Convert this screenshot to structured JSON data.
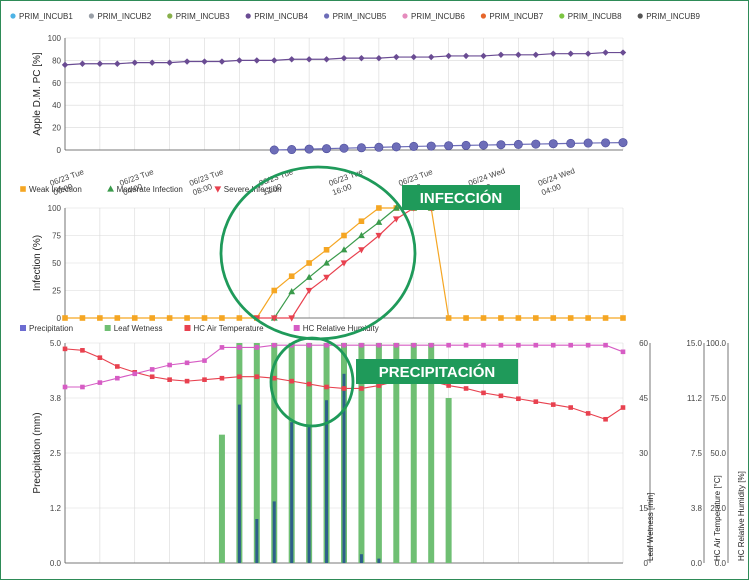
{
  "chart_data": [
    {
      "type": "line",
      "legend": [
        "PRIM_INCUB1",
        "PRIM_INCUB2",
        "PRIM_INCUB3",
        "PRIM_INCUB4",
        "PRIM_INCUB5",
        "PRIM_INCUB6",
        "PRIM_INCUB7",
        "PRIM_INCUB8",
        "PRIM_INCUB9"
      ],
      "legend_colors": [
        "#4db3e6",
        "#9aa0a8",
        "#88b04b",
        "#6a4c93",
        "#6d6db8",
        "#e58bbd",
        "#e6662b",
        "#7cc542",
        "#555555"
      ],
      "legend_placement": "top",
      "ylabel": "Apple D.M. PC [%]",
      "ylim": [
        0,
        100
      ],
      "yticks": [
        "0",
        "20",
        "40",
        "60",
        "80",
        "100"
      ],
      "xticks": [
        "06/23 Tue\n00:00",
        "06/23 Tue\n04:00",
        "06/23 Tue\n08:00",
        "06/23 Tue\n12:00",
        "06/23 Tue\n16:00",
        "06/23 Tue\n20:00",
        "06/24 Wed\n00:00",
        "06/24 Wed\n04:00"
      ],
      "x_range_hours": [
        0,
        32
      ],
      "grid": true,
      "series": [
        {
          "name": "PRIM_INCUB4",
          "color": "#6a4c93",
          "marker": "diamond",
          "x": [
            0,
            1,
            2,
            3,
            4,
            5,
            6,
            7,
            8,
            9,
            10,
            11,
            12,
            13,
            14,
            15,
            16,
            17,
            18,
            19,
            20,
            21,
            22,
            23,
            24,
            25,
            26,
            27,
            28,
            29,
            30,
            31,
            32
          ],
          "values": [
            76,
            77,
            77,
            77,
            78,
            78,
            78,
            79,
            79,
            79,
            80,
            80,
            80,
            81,
            81,
            81,
            82,
            82,
            82,
            83,
            83,
            83,
            84,
            84,
            84,
            85,
            85,
            85,
            86,
            86,
            86,
            87,
            87
          ]
        },
        {
          "name": "PRIM_INCUB5",
          "color": "#6d6db8",
          "marker": "circle",
          "x": [
            12,
            13,
            14,
            15,
            16,
            17,
            18,
            19,
            20,
            21,
            22,
            23,
            24,
            25,
            26,
            27,
            28,
            29,
            30,
            31,
            32
          ],
          "values": [
            0,
            0.4,
            0.8,
            1.2,
            1.6,
            2,
            2.4,
            2.8,
            3.2,
            3.5,
            3.8,
            4.1,
            4.4,
            4.7,
            5,
            5.3,
            5.6,
            5.9,
            6.2,
            6.4,
            6.6
          ]
        }
      ]
    },
    {
      "type": "line",
      "legend": [
        "Weak Infection",
        "Moderate Infection",
        "Severe Infection"
      ],
      "legend_placement": "top",
      "ylabel": "Infection (%)",
      "ylim": [
        0,
        100
      ],
      "yticks": [
        "0",
        "25",
        "50",
        "75",
        "100"
      ],
      "x_range_hours": [
        0,
        32
      ],
      "grid": true,
      "series": [
        {
          "name": "Weak Infection",
          "color": "#f5a623",
          "marker": "square",
          "x": [
            0,
            1,
            2,
            3,
            4,
            5,
            6,
            7,
            8,
            9,
            10,
            11,
            12,
            13,
            14,
            15,
            16,
            17,
            18,
            19,
            20,
            21,
            22,
            23,
            24,
            25,
            26,
            27,
            28,
            29,
            30,
            31,
            32
          ],
          "values": [
            0,
            0,
            0,
            0,
            0,
            0,
            0,
            0,
            0,
            0,
            0,
            0,
            25,
            38,
            50,
            62,
            75,
            88,
            100,
            100,
            100,
            100,
            0,
            0,
            0,
            0,
            0,
            0,
            0,
            0,
            0,
            0,
            0
          ]
        },
        {
          "name": "Moderate Infection",
          "color": "#3a9a4b",
          "marker": "triangle",
          "x": [
            12,
            13,
            14,
            15,
            16,
            17,
            18,
            19,
            20,
            21
          ],
          "values": [
            0,
            24,
            37,
            50,
            62,
            75,
            87,
            100,
            100,
            100
          ]
        },
        {
          "name": "Severe Infection",
          "color": "#e8414f",
          "marker": "triangle-down",
          "x": [
            11,
            12,
            13,
            14,
            15,
            16,
            17,
            18,
            19,
            20,
            21
          ],
          "values": [
            0,
            0,
            0,
            25,
            37,
            50,
            62,
            75,
            90,
            100,
            100
          ]
        }
      ]
    },
    {
      "type": "bar",
      "legend": [
        "Precipitation",
        "Leaf Wetness",
        "HC Air Temperature",
        "HC Relative Humidity"
      ],
      "legend_colors": [
        "#6c6cd1",
        "#6fbf73",
        "#e8414f",
        "#d65cc4"
      ],
      "legend_placement": "top",
      "ylabel": "Precipitation (mm)",
      "ylim": [
        0,
        5
      ],
      "yticks": [
        "0.0",
        "1.2",
        "2.5",
        "3.8",
        "5.0"
      ],
      "right_axes": [
        {
          "label": "Leaf Wetness [min]",
          "ticks": [
            "0",
            "15",
            "30",
            "45",
            "60"
          ],
          "ylim": [
            0,
            60
          ]
        },
        {
          "label": "HC Air Temperature [°C]",
          "ticks": [
            "0.0",
            "3.8",
            "7.5",
            "11.2",
            "15.0"
          ],
          "ylim": [
            0,
            15
          ]
        },
        {
          "label": "HC Relative Humidity [%]",
          "ticks": [
            "0.0",
            "25.0",
            "50.0",
            "75.0",
            "100.0"
          ],
          "ylim": [
            0,
            100
          ]
        }
      ],
      "x_range_hours": [
        0,
        32
      ],
      "grid": true,
      "series": [
        {
          "name": "Leaf Wetness",
          "color": "#6fbf73",
          "unit": "min",
          "x": [
            9,
            10,
            11,
            12,
            13,
            14,
            15,
            16,
            17,
            18,
            19,
            20,
            21,
            22
          ],
          "values": [
            35,
            60,
            60,
            60,
            60,
            60,
            60,
            60,
            60,
            60,
            60,
            60,
            60,
            45
          ]
        },
        {
          "name": "Precipitation",
          "color": "#2d5f8a",
          "unit": "mm",
          "x": [
            10,
            11,
            12,
            13,
            14,
            15,
            16,
            17,
            18
          ],
          "values": [
            3.6,
            1.0,
            1.4,
            3.2,
            3.1,
            3.7,
            4.3,
            0.2,
            0.1
          ]
        },
        {
          "name": "HC Air Temperature",
          "color": "#e8414f",
          "unit": "°C",
          "x": [
            0,
            1,
            2,
            3,
            4,
            5,
            6,
            7,
            8,
            9,
            10,
            11,
            12,
            13,
            14,
            15,
            16,
            17,
            18,
            19,
            20,
            21,
            22,
            23,
            24,
            25,
            26,
            27,
            28,
            29,
            30,
            31,
            32
          ],
          "values": [
            14.6,
            14.5,
            14.0,
            13.4,
            13.0,
            12.7,
            12.5,
            12.4,
            12.5,
            12.6,
            12.7,
            12.7,
            12.6,
            12.4,
            12.2,
            12.0,
            11.9,
            11.9,
            12.1,
            12.4,
            12.6,
            12.4,
            12.1,
            11.9,
            11.6,
            11.4,
            11.2,
            11.0,
            10.8,
            10.6,
            10.2,
            9.8,
            10.6
          ]
        },
        {
          "name": "HC Relative Humidity",
          "color": "#d65cc4",
          "unit": "%",
          "x": [
            0,
            1,
            2,
            3,
            4,
            5,
            6,
            7,
            8,
            9,
            10,
            11,
            12,
            13,
            14,
            15,
            16,
            17,
            18,
            19,
            20,
            21,
            22,
            23,
            24,
            25,
            26,
            27,
            28,
            29,
            30,
            31,
            32
          ],
          "values": [
            80,
            80,
            82,
            84,
            86,
            88,
            90,
            91,
            92,
            98,
            98,
            98,
            99,
            99,
            99,
            99,
            99,
            99,
            99,
            99,
            99,
            99,
            99,
            99,
            99,
            99,
            99,
            99,
            99,
            99,
            99,
            99,
            96
          ]
        }
      ]
    }
  ],
  "annotations": {
    "infection_label": "INFECCIÓN",
    "precipitation_label": "PRECIPITACIÓN",
    "highlight_color": "#1f9a5a"
  }
}
